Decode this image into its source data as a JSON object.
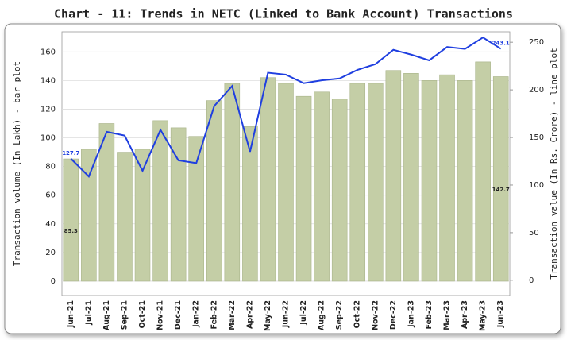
{
  "chart_data": {
    "type": "combo",
    "title": "Chart - 11: Trends in NETC (Linked to Bank Account) Transactions",
    "ylabel": "Transaction volume (In Lakh) - bar plot",
    "y2label": "Transaction value (In Rs. Crore) - line plot",
    "categories": [
      "Jun-21",
      "Jul-21",
      "Aug-21",
      "Sep-21",
      "Oct-21",
      "Nov-21",
      "Dec-21",
      "Jan-22",
      "Feb-22",
      "Mar-22",
      "Apr-22",
      "May-22",
      "Jun-22",
      "Jul-22",
      "Aug-22",
      "Sep-22",
      "Oct-22",
      "Nov-22",
      "Dec-22",
      "Jan-23",
      "Feb-23",
      "Mar-23",
      "Apr-23",
      "May-23",
      "Jun-23"
    ],
    "series": [
      {
        "type": "bar",
        "color": "#c4cea6",
        "values": [
          85.3,
          92,
          110,
          90,
          92,
          112,
          107,
          101,
          126,
          138,
          108,
          142,
          138,
          129,
          132,
          127,
          138,
          138,
          147,
          145,
          140,
          144,
          140,
          153,
          142.7
        ],
        "value_labels": [
          "85.3",
          null,
          null,
          null,
          null,
          null,
          null,
          null,
          null,
          null,
          null,
          null,
          null,
          null,
          null,
          null,
          null,
          null,
          null,
          null,
          null,
          null,
          null,
          null,
          "142.7"
        ]
      },
      {
        "type": "line",
        "axis": "y2",
        "color": "#1f3fe0",
        "values": [
          127.7,
          109,
          156,
          152,
          115,
          158,
          126,
          123,
          183,
          204,
          135,
          218,
          216,
          207,
          210,
          212,
          221,
          227,
          242,
          237,
          231,
          245,
          243,
          255,
          243.1
        ],
        "value_labels": [
          "127.7",
          null,
          null,
          null,
          null,
          null,
          null,
          null,
          null,
          null,
          null,
          null,
          null,
          null,
          null,
          null,
          null,
          null,
          null,
          null,
          null,
          null,
          null,
          null,
          "243.1"
        ]
      }
    ],
    "ylim": [
      -10,
      174
    ],
    "yticks": [
      0,
      20,
      40,
      60,
      80,
      100,
      120,
      140,
      160
    ],
    "y2lim": [
      -16,
      261
    ],
    "y2ticks": [
      0,
      50,
      100,
      150,
      200,
      250
    ],
    "grid": true
  }
}
